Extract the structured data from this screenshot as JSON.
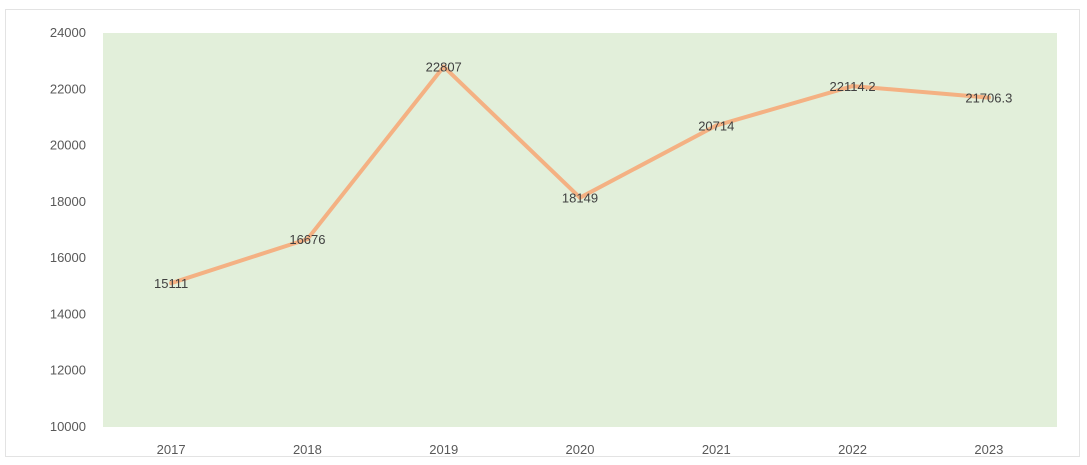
{
  "colors": {
    "plot_background": "#e2efda",
    "line": "#f4b183",
    "axis_text": "#595959",
    "label_text": "#404040"
  },
  "chart_data": {
    "type": "line",
    "title": "",
    "xlabel": "",
    "ylabel": "",
    "categories": [
      "2017",
      "2018",
      "2019",
      "2020",
      "2021",
      "2022",
      "2023"
    ],
    "series": [
      {
        "values": [
          15111,
          16676,
          22807,
          18149,
          20714,
          22114.2,
          21706.3
        ],
        "data_labels": [
          "15111",
          "16676",
          "22807",
          "18149",
          "20714",
          "22114.2",
          "21706.3"
        ]
      }
    ],
    "ylim": [
      10000,
      24000
    ],
    "yticks": [
      10000,
      12000,
      14000,
      16000,
      18000,
      20000,
      22000,
      24000
    ],
    "ytick_labels": [
      "10000",
      "12000",
      "14000",
      "16000",
      "18000",
      "20000",
      "22000",
      "24000"
    ],
    "grid": false,
    "legend": "none"
  }
}
